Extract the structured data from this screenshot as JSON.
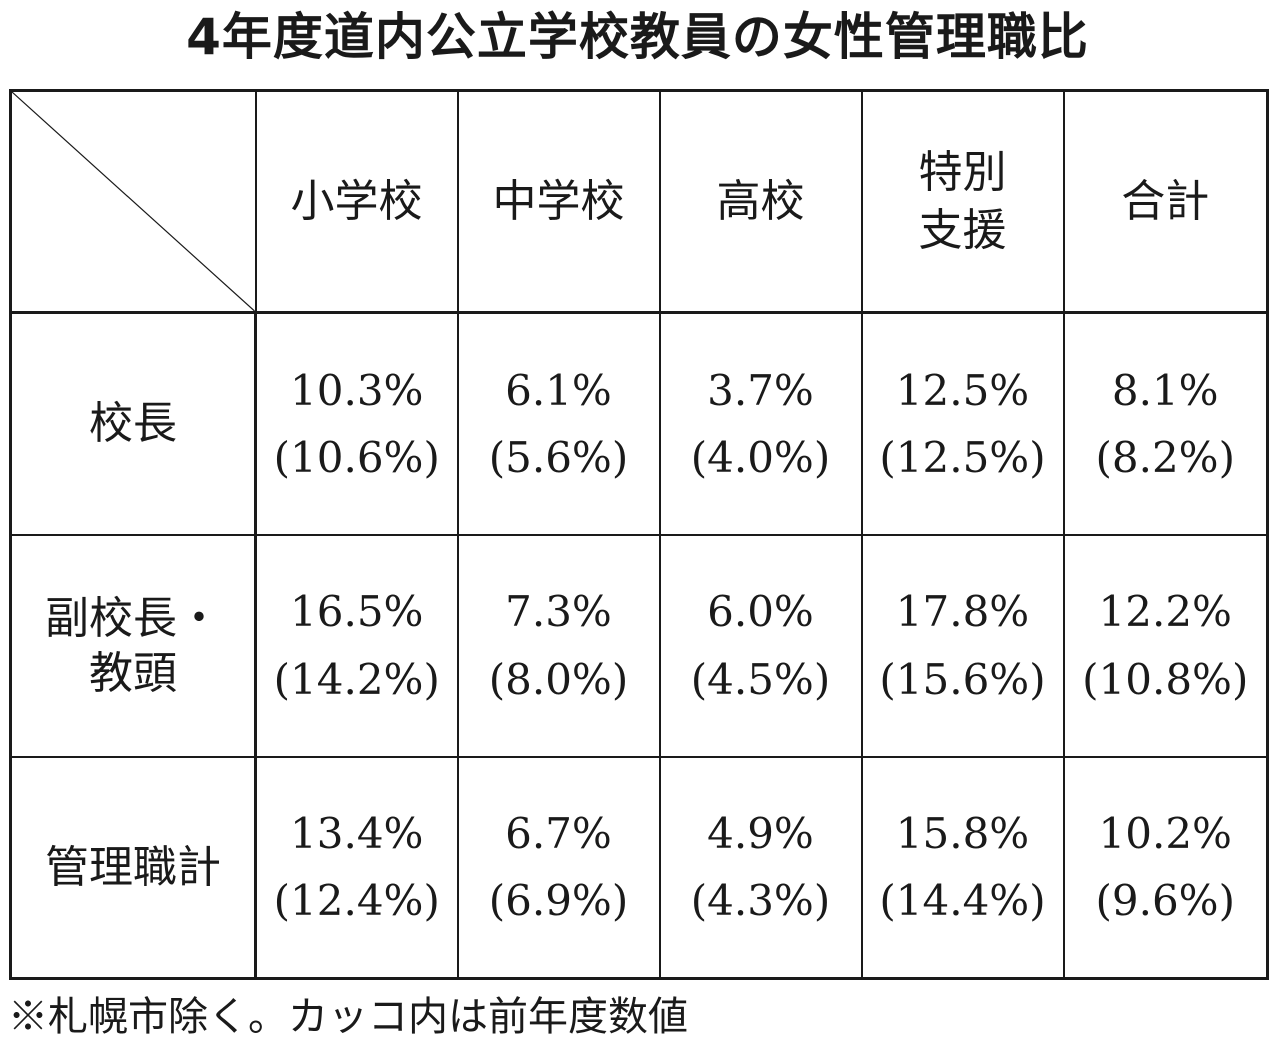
{
  "title": "4年度道内公立学校教員の女性管理職比",
  "note": "※札幌市除く。カッコ内は前年度数値",
  "chart_data": {
    "type": "table",
    "title": "4年度道内公立学校教員の女性管理職比",
    "columns": [
      [
        "小学校"
      ],
      [
        "中学校"
      ],
      [
        "高校"
      ],
      [
        "特別",
        "支援"
      ],
      [
        "合計"
      ]
    ],
    "rows": [
      {
        "label": [
          "校長"
        ],
        "values": [
          "10.3%",
          "6.1%",
          "3.7%",
          "12.5%",
          "8.1%"
        ],
        "previous": [
          "(10.6%)",
          "(5.6%)",
          "(4.0%)",
          "(12.5%)",
          "(8.2%)"
        ]
      },
      {
        "label": [
          "副校長・",
          "教頭"
        ],
        "values": [
          "16.5%",
          "7.3%",
          "6.0%",
          "17.8%",
          "12.2%"
        ],
        "previous": [
          "(14.2%)",
          "(8.0%)",
          "(4.5%)",
          "(15.6%)",
          "(10.8%)"
        ]
      },
      {
        "label": [
          "管理職計"
        ],
        "values": [
          "13.4%",
          "6.7%",
          "4.9%",
          "15.8%",
          "10.2%"
        ],
        "previous": [
          "(12.4%)",
          "(6.9%)",
          "(4.3%)",
          "(14.4%)",
          "(9.6%)"
        ]
      }
    ],
    "note": "※札幌市除く。カッコ内は前年度数値"
  }
}
